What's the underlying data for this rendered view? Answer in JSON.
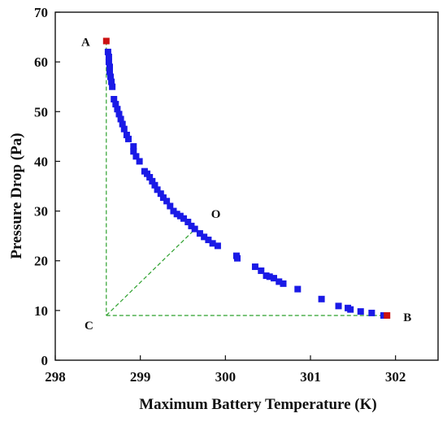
{
  "chart_data": {
    "type": "scatter",
    "title": "",
    "xlabel": "Maximum Battery Temperature (K)",
    "ylabel": "Pressure Drop (Pa)",
    "xlim": [
      298,
      302.5
    ],
    "ylim": [
      0,
      70
    ],
    "xticks": [
      "298",
      "299",
      "300",
      "301",
      "302"
    ],
    "yticks": [
      "0",
      "10",
      "20",
      "30",
      "40",
      "50",
      "60",
      "70"
    ],
    "grid": false,
    "legend": "none",
    "colors": {
      "pareto": "#1a1ae6",
      "extreme": "#cc1111",
      "guide": "#2ca02c",
      "axis": "#111111"
    },
    "series": [
      {
        "points": [
          [
            298.62,
            62.0
          ],
          [
            298.63,
            61.0
          ],
          [
            298.63,
            60.0
          ],
          [
            298.64,
            59.0
          ],
          [
            298.64,
            58.0
          ],
          [
            298.65,
            57.0
          ],
          [
            298.66,
            56.0
          ],
          [
            298.67,
            55.0
          ],
          [
            298.69,
            52.5
          ],
          [
            298.71,
            51.5
          ],
          [
            298.73,
            50.5
          ],
          [
            298.75,
            49.5
          ],
          [
            298.77,
            48.5
          ],
          [
            298.79,
            47.5
          ],
          [
            298.81,
            46.5
          ],
          [
            298.84,
            45.3
          ],
          [
            298.86,
            44.5
          ],
          [
            298.92,
            43.0
          ],
          [
            298.92,
            42.0
          ],
          [
            298.95,
            41.0
          ],
          [
            298.99,
            40.0
          ],
          [
            299.05,
            38.0
          ],
          [
            299.08,
            37.5
          ],
          [
            299.11,
            36.8
          ],
          [
            299.14,
            36.0
          ],
          [
            299.17,
            35.2
          ],
          [
            299.2,
            34.3
          ],
          [
            299.24,
            33.5
          ],
          [
            299.27,
            32.7
          ],
          [
            299.31,
            32.0
          ],
          [
            299.35,
            31.0
          ],
          [
            299.39,
            30.0
          ],
          [
            299.43,
            29.4
          ],
          [
            299.47,
            29.0
          ],
          [
            299.51,
            28.5
          ],
          [
            299.56,
            27.8
          ],
          [
            299.6,
            27.0
          ],
          [
            299.64,
            26.4
          ],
          [
            299.7,
            25.5
          ],
          [
            299.75,
            24.8
          ],
          [
            299.8,
            24.2
          ],
          [
            299.85,
            23.5
          ],
          [
            299.91,
            23.0
          ],
          [
            300.13,
            21.0
          ],
          [
            300.14,
            20.5
          ],
          [
            300.35,
            18.8
          ],
          [
            300.42,
            18.0
          ],
          [
            300.48,
            17.0
          ],
          [
            300.52,
            16.8
          ],
          [
            300.57,
            16.5
          ],
          [
            300.63,
            15.8
          ],
          [
            300.68,
            15.4
          ],
          [
            300.85,
            14.3
          ],
          [
            301.13,
            12.3
          ],
          [
            301.33,
            10.9
          ],
          [
            301.44,
            10.5
          ],
          [
            301.47,
            10.2
          ],
          [
            301.59,
            9.8
          ],
          [
            301.72,
            9.5
          ],
          [
            301.86,
            9.0
          ]
        ]
      }
    ],
    "extremes": [
      {
        "label": "A",
        "x": 298.6,
        "y": 64.2
      },
      {
        "label": "B",
        "x": 301.9,
        "y": 9.0
      }
    ],
    "annotations": [
      {
        "label": "A",
        "x": 298.6,
        "y": 64.2,
        "anchor": "left"
      },
      {
        "label": "B",
        "x": 301.9,
        "y": 9.0,
        "anchor": "right"
      },
      {
        "label": "C",
        "x": 298.6,
        "y": 9.0,
        "anchor": "below-left"
      },
      {
        "label": "O",
        "x": 299.67,
        "y": 26.8,
        "anchor": "above-right"
      }
    ],
    "guide_lines": [
      {
        "from": [
          298.6,
          64.2
        ],
        "to": [
          298.6,
          9.0
        ]
      },
      {
        "from": [
          298.6,
          9.0
        ],
        "to": [
          301.9,
          9.0
        ]
      },
      {
        "from": [
          298.6,
          9.0
        ],
        "to": [
          299.67,
          26.8
        ]
      }
    ]
  }
}
